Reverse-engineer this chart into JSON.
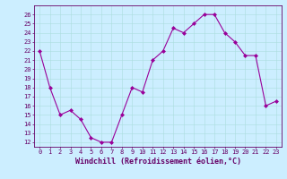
{
  "x": [
    0,
    1,
    2,
    3,
    4,
    5,
    6,
    7,
    8,
    9,
    10,
    11,
    12,
    13,
    14,
    15,
    16,
    17,
    18,
    19,
    20,
    21,
    22,
    23
  ],
  "y": [
    22,
    18,
    15,
    15.5,
    14.5,
    12.5,
    12,
    12,
    15,
    18,
    17.5,
    21,
    22,
    24.5,
    24,
    25,
    26,
    26,
    24,
    23,
    21.5,
    21.5,
    16,
    16.5
  ],
  "line_color": "#990099",
  "marker": "D",
  "markersize": 2,
  "linewidth": 0.8,
  "bg_color": "#cceeff",
  "grid_color": "#aadddd",
  "xlabel": "Windchill (Refroidissement éolien,°C)",
  "ylim_min": 11.5,
  "ylim_max": 27,
  "xlim_min": -0.5,
  "xlim_max": 23.5,
  "yticks": [
    12,
    13,
    14,
    15,
    16,
    17,
    18,
    19,
    20,
    21,
    22,
    23,
    24,
    25,
    26
  ],
  "xticks": [
    0,
    1,
    2,
    3,
    4,
    5,
    6,
    7,
    8,
    9,
    10,
    11,
    12,
    13,
    14,
    15,
    16,
    17,
    18,
    19,
    20,
    21,
    22,
    23
  ],
  "tick_fontsize": 5,
  "xlabel_fontsize": 6,
  "spine_color": "#660066",
  "text_color": "#660066"
}
